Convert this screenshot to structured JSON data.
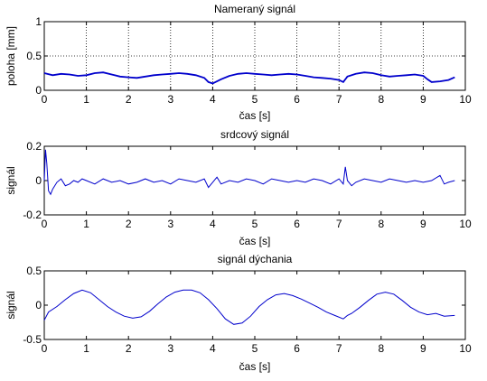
{
  "colors": {
    "line": "#0000cc",
    "axis": "#000000",
    "background": "#ffffff"
  },
  "chart_data": [
    {
      "type": "line",
      "title": "Nameraný signál",
      "xlabel": "čas [s]",
      "ylabel": "poloha [mm]",
      "xlim": [
        0,
        10
      ],
      "ylim": [
        0,
        1
      ],
      "xticks": [
        "0",
        "1",
        "2",
        "3",
        "4",
        "5",
        "6",
        "7",
        "8",
        "9",
        "10"
      ],
      "yticks": [
        "0",
        "0.5",
        "1"
      ],
      "grid": true,
      "series": [
        {
          "x": [
            0,
            0.2,
            0.4,
            0.6,
            0.8,
            1.0,
            1.2,
            1.4,
            1.6,
            1.8,
            2.0,
            2.2,
            2.4,
            2.6,
            2.8,
            3.0,
            3.2,
            3.4,
            3.6,
            3.8,
            3.9,
            4.0,
            4.2,
            4.4,
            4.6,
            4.8,
            5.0,
            5.2,
            5.4,
            5.6,
            5.8,
            6.0,
            6.2,
            6.4,
            6.6,
            6.8,
            7.0,
            7.1,
            7.2,
            7.4,
            7.6,
            7.8,
            8.0,
            8.2,
            8.4,
            8.6,
            8.8,
            9.0,
            9.1,
            9.2,
            9.4,
            9.6,
            9.75
          ],
          "y": [
            0.25,
            0.22,
            0.24,
            0.23,
            0.21,
            0.22,
            0.25,
            0.26,
            0.23,
            0.2,
            0.19,
            0.18,
            0.2,
            0.22,
            0.23,
            0.24,
            0.25,
            0.24,
            0.22,
            0.18,
            0.12,
            0.1,
            0.16,
            0.21,
            0.24,
            0.25,
            0.24,
            0.23,
            0.22,
            0.23,
            0.24,
            0.23,
            0.21,
            0.19,
            0.18,
            0.17,
            0.15,
            0.12,
            0.2,
            0.24,
            0.26,
            0.25,
            0.22,
            0.2,
            0.21,
            0.22,
            0.23,
            0.21,
            0.16,
            0.12,
            0.13,
            0.15,
            0.19
          ]
        }
      ]
    },
    {
      "type": "line",
      "title": "srdcový signál",
      "xlabel": "čas [s]",
      "ylabel": "signál",
      "xlim": [
        0,
        10
      ],
      "ylim": [
        -0.2,
        0.2
      ],
      "xticks": [
        "0",
        "1",
        "2",
        "3",
        "4",
        "5",
        "6",
        "7",
        "8",
        "9",
        "10"
      ],
      "yticks": [
        "-0.2",
        "0",
        "0.2"
      ],
      "grid": false,
      "series": [
        {
          "x": [
            0,
            0.03,
            0.06,
            0.1,
            0.15,
            0.2,
            0.3,
            0.4,
            0.5,
            0.6,
            0.7,
            0.8,
            0.9,
            1.0,
            1.2,
            1.4,
            1.6,
            1.8,
            2.0,
            2.2,
            2.4,
            2.6,
            2.8,
            3.0,
            3.2,
            3.4,
            3.6,
            3.8,
            3.9,
            4.0,
            4.1,
            4.2,
            4.4,
            4.6,
            4.8,
            5.0,
            5.2,
            5.4,
            5.6,
            5.8,
            6.0,
            6.2,
            6.4,
            6.6,
            6.8,
            7.0,
            7.1,
            7.15,
            7.2,
            7.3,
            7.4,
            7.6,
            7.8,
            8.0,
            8.2,
            8.4,
            8.6,
            8.8,
            9.0,
            9.2,
            9.4,
            9.5,
            9.6,
            9.75
          ],
          "y": [
            0.0,
            0.18,
            0.1,
            -0.06,
            -0.08,
            -0.05,
            -0.01,
            0.01,
            -0.03,
            -0.02,
            0.0,
            -0.01,
            0.01,
            0.0,
            -0.02,
            0.01,
            -0.01,
            0.0,
            -0.02,
            -0.01,
            0.01,
            -0.01,
            0.0,
            -0.02,
            0.01,
            0.0,
            -0.01,
            0.01,
            -0.04,
            -0.01,
            0.02,
            -0.02,
            0.0,
            -0.01,
            0.01,
            0.0,
            -0.02,
            0.01,
            0.0,
            -0.01,
            0.0,
            -0.01,
            0.01,
            0.0,
            -0.02,
            0.01,
            -0.02,
            0.08,
            0.0,
            -0.03,
            -0.01,
            0.01,
            0.0,
            -0.01,
            0.01,
            0.0,
            -0.01,
            0.0,
            -0.01,
            0.0,
            0.03,
            -0.02,
            -0.01,
            0.0
          ]
        }
      ]
    },
    {
      "type": "line",
      "title": "signál dýchania",
      "xlabel": "čas [s]",
      "ylabel": "signál",
      "xlim": [
        0,
        10
      ],
      "ylim": [
        -0.5,
        0.5
      ],
      "xticks": [
        "0",
        "1",
        "2",
        "3",
        "4",
        "5",
        "6",
        "7",
        "8",
        "9",
        "10"
      ],
      "yticks": [
        "-0.5",
        "0",
        "0.5"
      ],
      "grid": false,
      "series": [
        {
          "x": [
            0,
            0.1,
            0.3,
            0.5,
            0.7,
            0.9,
            1.1,
            1.3,
            1.5,
            1.7,
            1.9,
            2.1,
            2.3,
            2.5,
            2.7,
            2.9,
            3.1,
            3.3,
            3.5,
            3.7,
            3.9,
            4.1,
            4.3,
            4.5,
            4.7,
            4.9,
            5.1,
            5.3,
            5.5,
            5.7,
            5.9,
            6.1,
            6.3,
            6.5,
            6.7,
            6.9,
            7.1,
            7.2,
            7.3,
            7.5,
            7.7,
            7.9,
            8.1,
            8.3,
            8.5,
            8.7,
            8.9,
            9.1,
            9.3,
            9.5,
            9.75
          ],
          "y": [
            -0.22,
            -0.1,
            -0.02,
            0.08,
            0.17,
            0.22,
            0.18,
            0.08,
            -0.02,
            -0.1,
            -0.16,
            -0.19,
            -0.17,
            -0.09,
            0.02,
            0.12,
            0.19,
            0.22,
            0.22,
            0.18,
            0.08,
            -0.05,
            -0.2,
            -0.28,
            -0.26,
            -0.16,
            -0.02,
            0.08,
            0.15,
            0.17,
            0.14,
            0.09,
            0.03,
            -0.03,
            -0.1,
            -0.15,
            -0.2,
            -0.15,
            -0.12,
            -0.03,
            0.07,
            0.16,
            0.19,
            0.16,
            0.07,
            -0.03,
            -0.1,
            -0.14,
            -0.12,
            -0.16,
            -0.15
          ]
        }
      ]
    }
  ]
}
